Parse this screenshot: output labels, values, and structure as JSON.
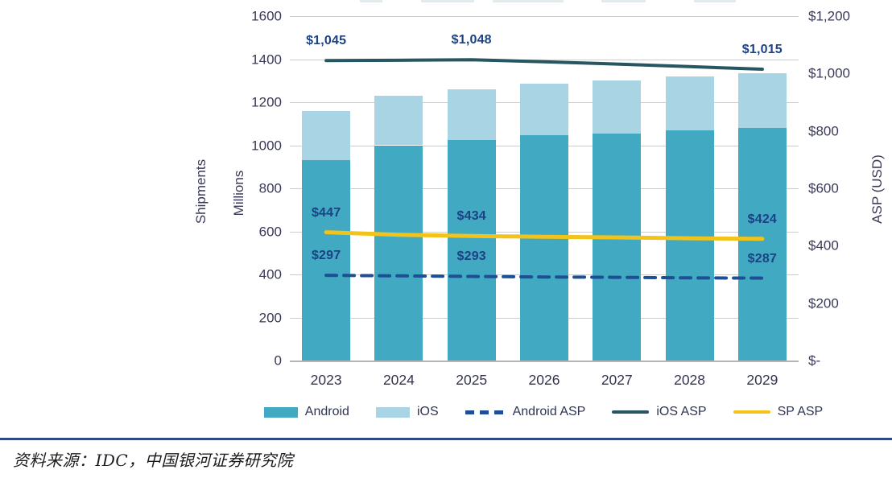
{
  "chart_data": {
    "type": "bar",
    "subtype": "stacked-bars-with-lines",
    "categories": [
      "2023",
      "2024",
      "2025",
      "2026",
      "2027",
      "2028",
      "2029"
    ],
    "bar_series": [
      {
        "name": "Android",
        "axis": "left",
        "color": "#41a9c1",
        "values": [
          930,
          1000,
          1025,
          1045,
          1055,
          1070,
          1080
        ]
      },
      {
        "name": "iOS",
        "axis": "left",
        "color": "#a8d4e4",
        "values": [
          230,
          230,
          235,
          240,
          245,
          250,
          255
        ]
      }
    ],
    "line_series": [
      {
        "name": "Android ASP",
        "axis": "right",
        "style": "dashed",
        "color": "#1e4f94",
        "width": 4,
        "values": [
          297,
          295,
          293,
          291,
          290,
          288,
          287
        ]
      },
      {
        "name": "iOS ASP",
        "axis": "right",
        "style": "solid",
        "color": "#26565f",
        "width": 4,
        "values": [
          1045,
          1046,
          1048,
          1041,
          1033,
          1024,
          1015
        ]
      },
      {
        "name": "SP ASP",
        "axis": "right",
        "style": "solid",
        "color": "#f2c31b",
        "width": 5,
        "values": [
          447,
          438,
          434,
          431,
          429,
          426,
          424
        ]
      }
    ],
    "annotations": [
      {
        "text": "$1,045",
        "series": "iOS ASP",
        "year": "2023"
      },
      {
        "text": "$1,048",
        "series": "iOS ASP",
        "year": "2025"
      },
      {
        "text": "$1,015",
        "series": "iOS ASP",
        "year": "2029"
      },
      {
        "text": "$447",
        "series": "SP ASP",
        "year": "2023"
      },
      {
        "text": "$434",
        "series": "SP ASP",
        "year": "2025"
      },
      {
        "text": "$424",
        "series": "SP ASP",
        "year": "2029"
      },
      {
        "text": "$297",
        "series": "Android ASP",
        "year": "2023"
      },
      {
        "text": "$293",
        "series": "Android ASP",
        "year": "2025"
      },
      {
        "text": "$287",
        "series": "Android ASP",
        "year": "2029"
      }
    ],
    "left_axis": {
      "title": "Shipments",
      "unit_label": "Millions",
      "min": 0,
      "max": 1600,
      "ticks": [
        {
          "label": "1600",
          "value": 1600
        },
        {
          "label": "1400",
          "value": 1400
        },
        {
          "label": "1200",
          "value": 1200
        },
        {
          "label": "1000",
          "value": 1000
        },
        {
          "label": "800",
          "value": 800
        },
        {
          "label": "600",
          "value": 600
        },
        {
          "label": "400",
          "value": 400
        },
        {
          "label": "200",
          "value": 200
        },
        {
          "label": "0",
          "value": 0
        }
      ]
    },
    "right_axis": {
      "title": "ASP (USD)",
      "min": 0,
      "max": 1200,
      "ticks": [
        {
          "label": "$1,200",
          "value": 1200
        },
        {
          "label": "$1,000",
          "value": 1000
        },
        {
          "label": "$800",
          "value": 800
        },
        {
          "label": "$600",
          "value": 600
        },
        {
          "label": "$400",
          "value": 400
        },
        {
          "label": "$200",
          "value": 200
        },
        {
          "label": "$-",
          "value": 0
        }
      ]
    },
    "legend": [
      {
        "label": "Android",
        "swatch": "rect",
        "color": "#41a9c1"
      },
      {
        "label": "iOS",
        "swatch": "rect",
        "color": "#a8d4e4"
      },
      {
        "label": "Android ASP",
        "swatch": "dashed-line",
        "color": "#1e4f94"
      },
      {
        "label": "iOS ASP",
        "swatch": "line",
        "color": "#26565f"
      },
      {
        "label": "SP ASP",
        "swatch": "line",
        "color": "#f2c31b"
      }
    ],
    "grid": true,
    "legend_position": "bottom"
  },
  "footer": {
    "source_text": "资料来源：IDC，中国银河证券研究院",
    "rule_color": "#2e4a86"
  },
  "colors": {
    "android_bar": "#41a9c1",
    "ios_bar": "#a8d4e4",
    "android_asp_line": "#1e4f94",
    "ios_asp_line": "#26565f",
    "sp_asp_line": "#f2c31b",
    "axis_text": "#3a3a58",
    "annotation_text": "#1c4185",
    "gridline": "#cdcdcd"
  }
}
